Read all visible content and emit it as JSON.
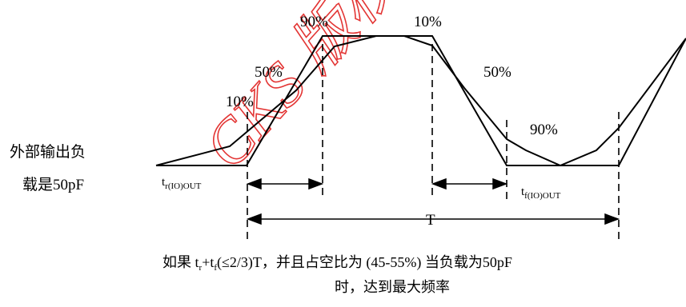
{
  "diagram": {
    "load_label_line1": "外部输出负",
    "load_label_line2": "载是50pF",
    "pct_10_rise": "10%",
    "pct_50_rise": "50%",
    "pct_90_rise": "90%",
    "pct_10_fall": "10%",
    "pct_50_fall": "50%",
    "pct_90_fall": "90%",
    "tr_main": "t",
    "tr_sub": "r(IO)OUT",
    "tf_main": "t",
    "tf_sub": "f(IO)OUT",
    "period_label": "T",
    "watermark": "CKS 版权",
    "note_line1_prefix": "如果 t",
    "note_line1_r": "r",
    "note_line1_plus": "+t",
    "note_line1_f": "f",
    "note_line1_rest": "(≤2/3)T，并且占空比为 (45-55%) 当负载为50pF",
    "note_line2": "时，达到最大频率",
    "colors": {
      "line": "#000000",
      "watermark": "#e0201f"
    }
  }
}
